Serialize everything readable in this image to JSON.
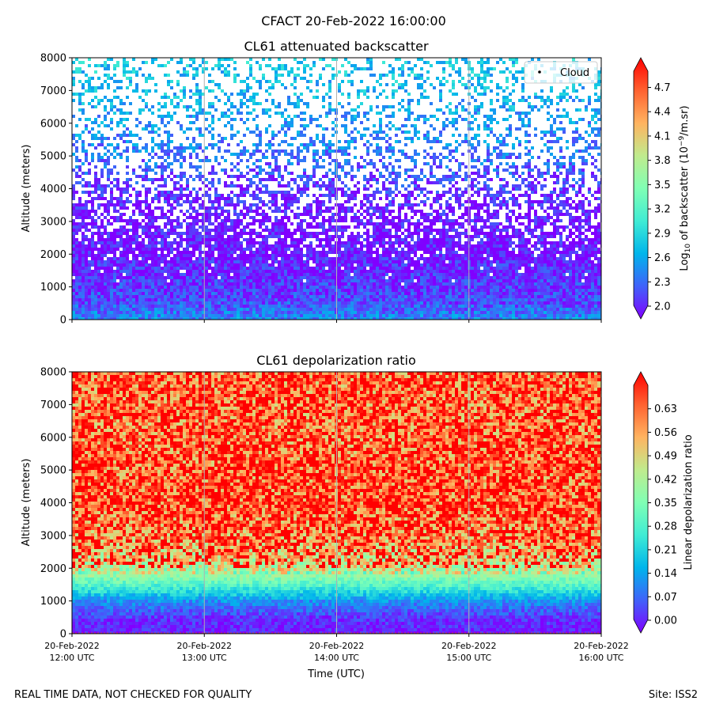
{
  "figure": {
    "suptitle": "CFACT 20-Feb-2022 16:00:00",
    "footer_left": "REAL TIME DATA, NOT CHECKED FOR QUALITY",
    "footer_right": "Site: ISS2"
  },
  "chart_data": [
    {
      "type": "heatmap",
      "title": "CL61 attenuated backscatter",
      "ylabel": "Altitude (meters)",
      "xlabel": "",
      "ylim": [
        0,
        8000
      ],
      "yticks": [
        "0",
        "1000",
        "2000",
        "3000",
        "4000",
        "5000",
        "6000",
        "7000",
        "8000"
      ],
      "xtick_labels": [],
      "x_range": [
        "2022-02-20 12:00",
        "2022-02-20 16:00"
      ],
      "grid": "vertical lines at each hour",
      "legend": {
        "label": "Cloud",
        "placement": "top-right"
      },
      "colorbar": {
        "label_prefix": "Log",
        "label_sub": "10",
        "label_mid": " of backscatter (10",
        "label_sup": "−9",
        "label_suffix": "/m.sr)",
        "range": [
          2.0,
          4.9
        ],
        "ticks": [
          "2.0",
          "2.3",
          "2.6",
          "2.9",
          "3.2",
          "3.5",
          "3.8",
          "4.1",
          "4.4",
          "4.7"
        ],
        "colormap": "rainbow",
        "extend": "both"
      },
      "profile": [
        {
          "altitude": 0,
          "value": 2.55,
          "coverage": 1.0
        },
        {
          "altitude": 500,
          "value": 2.3,
          "coverage": 1.0
        },
        {
          "altitude": 1000,
          "value": 2.2,
          "coverage": 1.0
        },
        {
          "altitude": 2000,
          "value": 2.08,
          "coverage": 0.9
        },
        {
          "altitude": 3000,
          "value": 2.05,
          "coverage": 0.65
        },
        {
          "altitude": 4000,
          "value": 2.2,
          "coverage": 0.5
        },
        {
          "altitude": 5000,
          "value": 2.45,
          "coverage": 0.38
        },
        {
          "altitude": 6000,
          "value": 2.6,
          "coverage": 0.3
        },
        {
          "altitude": 7000,
          "value": 2.75,
          "coverage": 0.3
        },
        {
          "altitude": 8000,
          "value": 2.85,
          "coverage": 0.32
        }
      ]
    },
    {
      "type": "heatmap",
      "title": "CL61 depolarization ratio",
      "ylabel": "Altitude (meters)",
      "xlabel": "Time (UTC)",
      "ylim": [
        0,
        8000
      ],
      "yticks": [
        "0",
        "1000",
        "2000",
        "3000",
        "4000",
        "5000",
        "6000",
        "7000",
        "8000"
      ],
      "xtick_labels": [
        {
          "date": "20-Feb-2022",
          "time": "12:00 UTC"
        },
        {
          "date": "20-Feb-2022",
          "time": "13:00 UTC"
        },
        {
          "date": "20-Feb-2022",
          "time": "14:00 UTC"
        },
        {
          "date": "20-Feb-2022",
          "time": "15:00 UTC"
        },
        {
          "date": "20-Feb-2022",
          "time": "16:00 UTC"
        }
      ],
      "x_range": [
        "2022-02-20 12:00",
        "2022-02-20 16:00"
      ],
      "grid": "vertical lines at each hour",
      "colorbar": {
        "label": "Linear depolarization ratio",
        "range": [
          0.0,
          0.7
        ],
        "ticks": [
          "0.00",
          "0.07",
          "0.14",
          "0.21",
          "0.28",
          "0.35",
          "0.42",
          "0.49",
          "0.56",
          "0.63"
        ],
        "colormap": "rainbow",
        "extend": "both"
      },
      "profile": [
        {
          "altitude": 0,
          "value": 0.02,
          "coverage": 1.0
        },
        {
          "altitude": 500,
          "value": 0.05,
          "coverage": 1.0
        },
        {
          "altitude": 1000,
          "value": 0.14,
          "coverage": 1.0
        },
        {
          "altitude": 1500,
          "value": 0.3,
          "coverage": 1.0
        },
        {
          "altitude": 2000,
          "value": 0.45,
          "coverage": 1.0
        },
        {
          "altitude": 3000,
          "value": 0.56,
          "coverage": 1.0
        },
        {
          "altitude": 4000,
          "value": 0.6,
          "coverage": 1.0
        },
        {
          "altitude": 6000,
          "value": 0.58,
          "coverage": 1.0
        },
        {
          "altitude": 8000,
          "value": 0.58,
          "coverage": 1.0
        }
      ]
    }
  ]
}
